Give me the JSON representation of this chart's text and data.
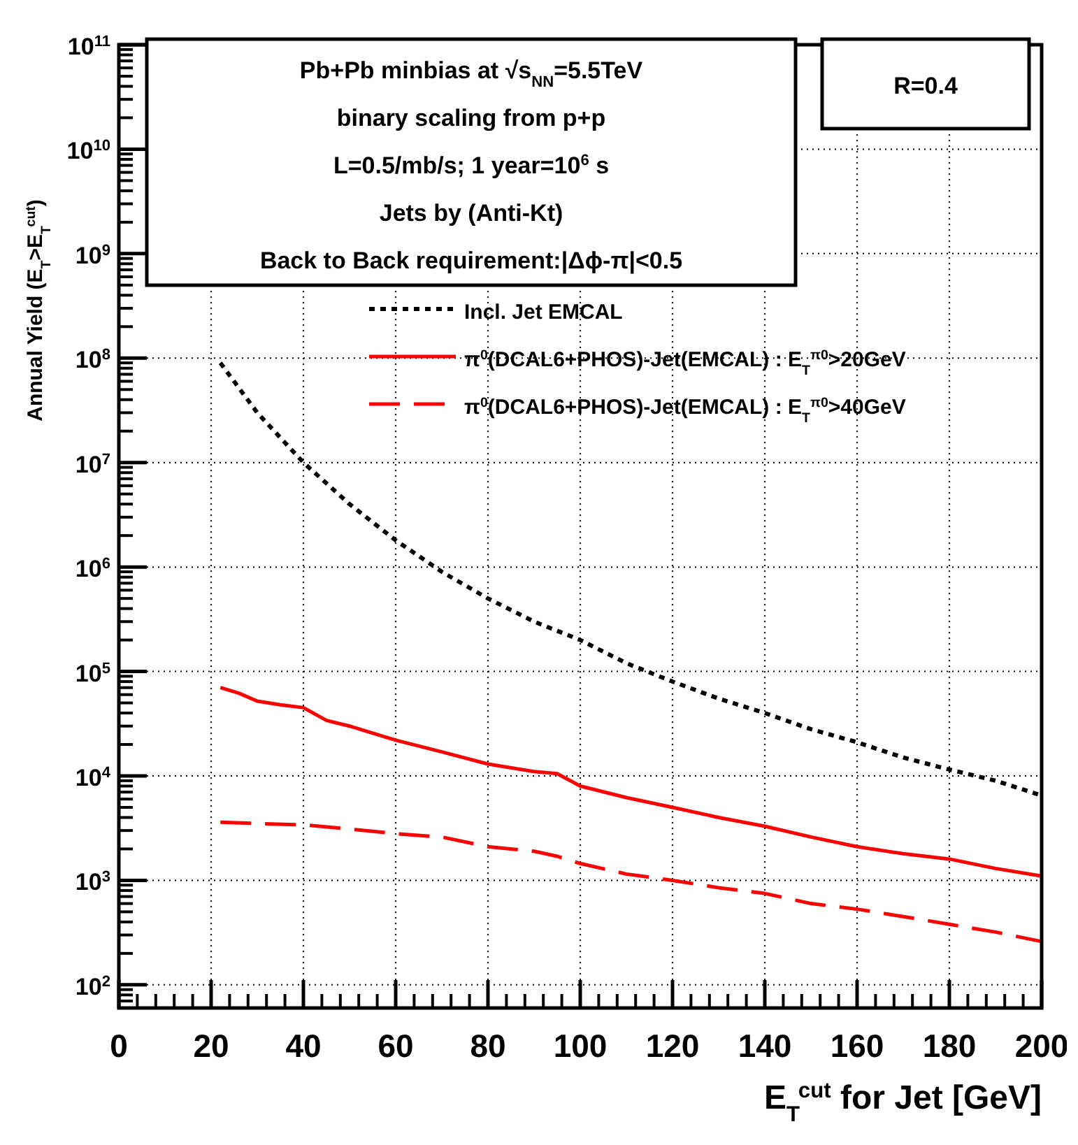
{
  "chart_data": {
    "type": "line",
    "xlabel": "E$_{T}$$^{cut}$ for Jet [GeV]",
    "ylabel": "Annual Yield (E$_{T}$>E$_{T}$$^{cut}$)",
    "annotations": [
      "Pb+Pb minbias at √s$_{NN}$=5.5TeV",
      "binary scaling from p+p",
      "L=0.5/mb/s; 1 year=10$^{6}$ s",
      "Jets by (Anti-Kt)",
      "Back to Back requirement:|Δϕ-π|<0.5",
      "R=0.4"
    ],
    "xlim": [
      0,
      200
    ],
    "xticks": [
      0,
      20,
      40,
      60,
      80,
      100,
      120,
      140,
      160,
      180,
      200
    ],
    "ylim": [
      60,
      100000000000
    ],
    "yticks": [
      {
        "value": 100,
        "label": "10$^{2}$"
      },
      {
        "value": 1000,
        "label": "10$^{3}$"
      },
      {
        "value": 10000,
        "label": "10$^{4}$"
      },
      {
        "value": 100000,
        "label": "10$^{5}$"
      },
      {
        "value": 1000000,
        "label": "10$^{6}$"
      },
      {
        "value": 10000000,
        "label": "10$^{7}$"
      },
      {
        "value": 100000000,
        "label": "10$^{8}$"
      },
      {
        "value": 1000000000,
        "label": "10$^{9}$"
      },
      {
        "value": 10000000000,
        "label": "10$^{10}$"
      },
      {
        "value": 100000000000,
        "label": "10$^{11}$"
      }
    ],
    "log": "y",
    "grid": true,
    "legend": "top right",
    "series": [
      {
        "name": "Incl. Jet EMCAL",
        "color": "#000000",
        "line_style": "dotted",
        "x": [
          22,
          30,
          40,
          50,
          60,
          70,
          80,
          90,
          100,
          110,
          120,
          130,
          140,
          150,
          160,
          170,
          180,
          190,
          200
        ],
        "values": [
          90000000,
          30000000,
          10000000,
          4000000,
          1800000,
          900000,
          500000,
          300000,
          200000,
          120000,
          80000,
          55000,
          40000,
          28000,
          21000,
          15000,
          11500,
          9000,
          6500
        ]
      },
      {
        "name": "π$^{0}$(DCAL6+PHOS)-Jet(EMCAL) : E$_{T}$$^{π0}$>20GeV",
        "color": "#ff0000",
        "line_style": "solid",
        "x": [
          22,
          26,
          30,
          35,
          40,
          45,
          50,
          60,
          70,
          80,
          90,
          95,
          100,
          110,
          120,
          130,
          140,
          150,
          160,
          170,
          180,
          190,
          200
        ],
        "values": [
          70000,
          62000,
          52000,
          48000,
          45000,
          34000,
          30000,
          22000,
          17000,
          13000,
          11000,
          10500,
          8000,
          6200,
          5000,
          4000,
          3300,
          2600,
          2100,
          1800,
          1600,
          1300,
          1100
        ]
      },
      {
        "name": "π$^{0}$(DCAL6+PHOS)-Jet(EMCAL) : E$_{T}$$^{π0}$>40GeV",
        "color": "#ff0000",
        "line_style": "dashed",
        "x": [
          22,
          30,
          40,
          50,
          60,
          70,
          80,
          90,
          95,
          100,
          110,
          120,
          130,
          140,
          150,
          160,
          170,
          180,
          190,
          200
        ],
        "values": [
          3600,
          3500,
          3400,
          3100,
          2800,
          2600,
          2100,
          1900,
          1700,
          1450,
          1150,
          1000,
          850,
          750,
          600,
          530,
          450,
          380,
          320,
          260
        ]
      }
    ]
  }
}
